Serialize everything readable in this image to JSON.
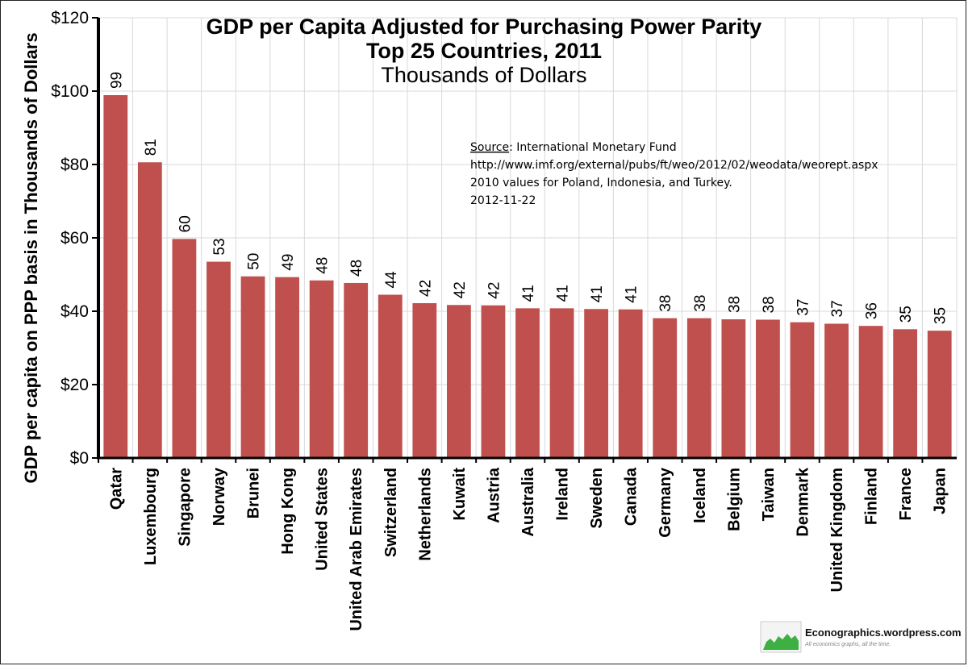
{
  "chart_data": {
    "type": "bar",
    "title": "GDP per Capita Adjusted for Purchasing Power Parity",
    "subtitle": "Top 25 Countries, 2011",
    "subtitle2": "Thousands of Dollars",
    "ylabel": "GDP  per capita on PPP basis  in Thousands of Dollars",
    "xlabel": "",
    "ylim": [
      0,
      120
    ],
    "yticks": [
      0,
      20,
      40,
      60,
      80,
      100,
      120
    ],
    "ytick_labels": [
      "$0",
      "$20",
      "$40",
      "$60",
      "$80",
      "$100",
      "$120"
    ],
    "grid": true,
    "bar_color": "#c0504d",
    "categories": [
      "Qatar",
      "Luxembourg",
      "Singapore",
      "Norway",
      "Brunei",
      "Hong Kong",
      "United States",
      "United Arab Emirates",
      "Switzerland",
      "Netherlands",
      "Kuwait",
      "Austria",
      "Australia",
      "Ireland",
      "Sweden",
      "Canada",
      "Germany",
      "Iceland",
      "Belgium",
      "Taiwan",
      "Denmark",
      "United Kingdom",
      "Finland",
      "France",
      "Japan"
    ],
    "values": [
      98.9,
      80.6,
      59.7,
      53.5,
      49.5,
      49.3,
      48.4,
      47.7,
      44.5,
      42.2,
      41.7,
      41.6,
      40.8,
      40.8,
      40.6,
      40.5,
      38.1,
      38.1,
      37.8,
      37.7,
      37.0,
      36.6,
      36.0,
      35.1,
      34.7
    ],
    "data_labels": [
      "99",
      "81",
      "60",
      "53",
      "50",
      "49",
      "48",
      "48",
      "44",
      "42",
      "42",
      "42",
      "41",
      "41",
      "41",
      "41",
      "38",
      "38",
      "38",
      "38",
      "37",
      "37",
      "36",
      "35",
      "35"
    ],
    "annotation": {
      "source_label": "Source",
      "source_text": ": International Monetary Fund",
      "lines": [
        "http://www.imf.org/external/pubs/ft/weo/2012/02/weodata/weorept.aspx",
        "2010 values for Poland, Indonesia, and Turkey.",
        "2012-11-22"
      ]
    }
  },
  "watermark": {
    "site": "Econographics.wordpress.com",
    "tagline": "All economics graphs, all the time."
  }
}
